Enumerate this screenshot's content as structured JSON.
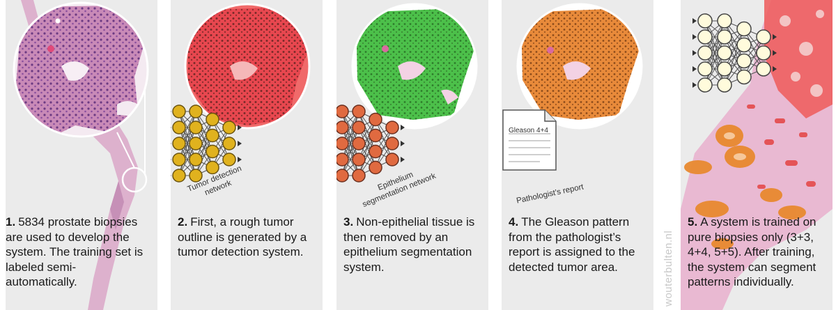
{
  "steps": [
    {
      "num": "1.",
      "text": "5834 prostate biopsies are used to develop the system. The training set is labeled semi-automatically."
    },
    {
      "num": "2.",
      "text": "First, a rough tumor outline is generated by a tumor detection system."
    },
    {
      "num": "3.",
      "text": "Non-epithelial tissue is then removed by an epithelium segmentation system."
    },
    {
      "num": "4.",
      "text": "The Gleason pattern from the pathologist’s report is assigned to the detected tumor area."
    },
    {
      "num": "5.",
      "text": "A system is trained on pure biopsies only (3+3, 4+4, 5+5). After training, the system can segment patterns individually."
    }
  ],
  "labels": {
    "tumor_net_line1": "Tumor detection",
    "tumor_net_line2": "network",
    "epi_net_line1": "Epithelium",
    "epi_net_line2": "segmentation network",
    "report_doc": "Gleason 4+4",
    "report_label": "Pathologist’s report"
  },
  "credit": "wouterbulten.nl",
  "colors": {
    "panel_bg": "#ebebeb",
    "tumor_red": "#e8474f",
    "epithelium_green": "#4cc04a",
    "gleason_orange": "#e88a3a",
    "node_yellow": "#e0b21e",
    "node_orange": "#e06a40",
    "node_pale": "#fffbdc",
    "tissue_pink": "#d9a4c4"
  },
  "icons": [
    "neural-network-icon",
    "document-icon",
    "biopsy-zoom-icon"
  ]
}
